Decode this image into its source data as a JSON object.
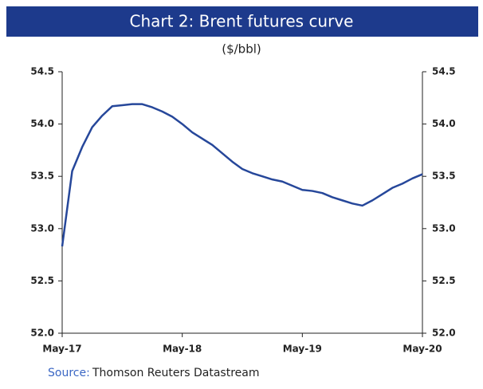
{
  "chart_data": {
    "type": "line",
    "title": "Chart 2: Brent futures curve",
    "subtitle": "($/bbl)",
    "source": {
      "label": "Source:",
      "text": "Thomson Reuters Datastream"
    },
    "categories": [
      "May-17",
      null,
      null,
      null,
      null,
      null,
      null,
      null,
      null,
      null,
      null,
      null,
      "May-18",
      null,
      null,
      null,
      null,
      null,
      null,
      null,
      null,
      null,
      null,
      null,
      "May-19",
      null,
      null,
      null,
      null,
      null,
      null,
      null,
      null,
      null,
      null,
      null,
      "May-20"
    ],
    "series": [
      {
        "name": "Brent futures",
        "color": "#26479a",
        "values": [
          52.83,
          53.55,
          53.78,
          53.97,
          54.08,
          54.17,
          54.18,
          54.19,
          54.19,
          54.16,
          54.12,
          54.07,
          54.0,
          53.92,
          53.86,
          53.8,
          53.72,
          53.64,
          53.57,
          53.53,
          53.5,
          53.47,
          53.45,
          53.41,
          53.37,
          53.36,
          53.34,
          53.3,
          53.27,
          53.24,
          53.22,
          53.27,
          53.33,
          53.39,
          53.43,
          53.48,
          53.52
        ]
      }
    ],
    "ylim": [
      52.0,
      54.5
    ],
    "yticks": [
      {
        "value": 52,
        "label": "52.0"
      },
      52.5,
      {
        "value": 53,
        "label": "53.0"
      },
      53.5,
      {
        "value": 54,
        "label": "54.0"
      },
      54.5
    ],
    "y2lim": [
      52.0,
      54.5
    ],
    "y2ticks": [
      {
        "value": 52,
        "label": "52.0"
      },
      52.5,
      {
        "value": 53,
        "label": "53.0"
      },
      53.5,
      {
        "value": 54,
        "label": "54.0"
      },
      54.5
    ],
    "grid": false
  }
}
